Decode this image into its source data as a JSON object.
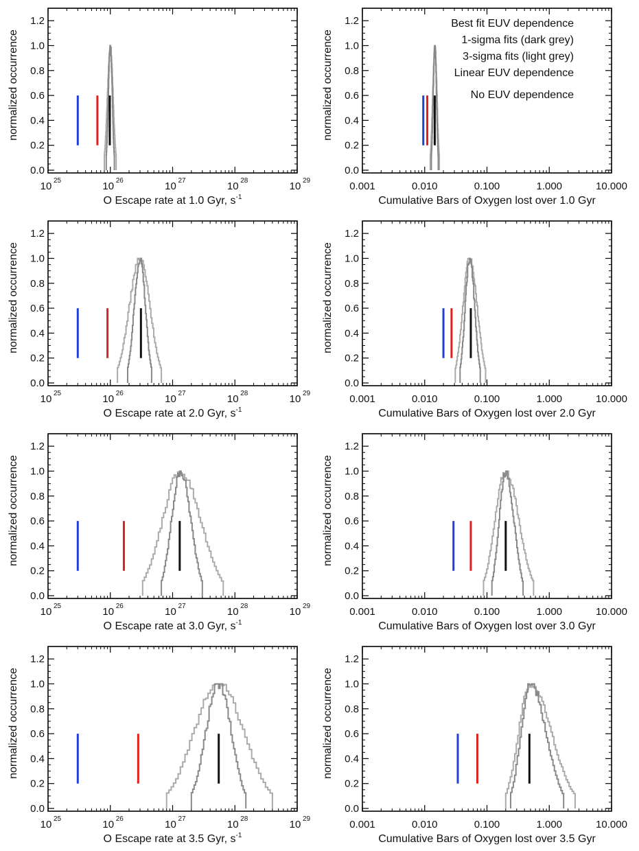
{
  "legend": {
    "placement": "top-right of right panel in row 1",
    "entries": [
      {
        "label": "Best fit EUV dependence",
        "color": "#111111"
      },
      {
        "label": "1-sigma fits (dark grey)",
        "color": "#888888"
      },
      {
        "label": "3-sigma fits (light grey)",
        "color": "#aaaaaa"
      },
      {
        "label": "Linear EUV dependence",
        "color": "#e0201e"
      },
      {
        "label": "No EUV dependence",
        "color": "#1f3fd8"
      }
    ]
  },
  "ylabel": "normalized occurrence",
  "y_ticks": [
    "0.0",
    "0.2",
    "0.4",
    "0.6",
    "0.8",
    "1.0",
    "1.2"
  ],
  "rate_ticks": [
    {
      "base": "10",
      "exp": "25"
    },
    {
      "base": "10",
      "exp": "26"
    },
    {
      "base": "10",
      "exp": "27"
    },
    {
      "base": "10",
      "exp": "28"
    },
    {
      "base": "10",
      "exp": "29"
    }
  ],
  "bars_ticks": [
    "0.001",
    "0.010",
    "0.100",
    "1.000",
    "10.000"
  ],
  "colors": {
    "best": "#111111",
    "linear": "#e0201e",
    "none": "#1f3fd8",
    "sigma1": "#888888",
    "sigma3": "#aaaaaa"
  },
  "chart_data": [
    {
      "type": "line",
      "row": 0,
      "col": 0,
      "xlabel_main": "O Escape rate at 1.0 Gyr, s",
      "xlabel_sup": "-1",
      "xscale": "log",
      "xlim": [
        1e+25,
        1e+29
      ],
      "ylim": [
        0,
        1.3
      ],
      "markers": {
        "none": 3e+25,
        "linear": 6.2e+25,
        "best": 9.8e+25
      },
      "sigma3": {
        "lo": 8e+25,
        "peak": 1e+26,
        "hi": 1.24e+26
      },
      "sigma1": {
        "lo": 8.6e+25,
        "peak": 1e+26,
        "hi": 1.16e+26
      }
    },
    {
      "type": "line",
      "row": 0,
      "col": 1,
      "xlabel_main": "Cumulative Bars of Oxygen lost over 1.0 Gyr",
      "xscale": "log",
      "xlim": [
        0.001,
        10
      ],
      "ylim": [
        0,
        1.3
      ],
      "markers": {
        "none": 0.0095,
        "linear": 0.011,
        "best": 0.0145
      },
      "sigma3": {
        "lo": 0.0123,
        "peak": 0.0146,
        "hi": 0.0172
      },
      "sigma1": {
        "lo": 0.0128,
        "peak": 0.0146,
        "hi": 0.0165
      }
    },
    {
      "type": "line",
      "row": 1,
      "col": 0,
      "xlabel_main": "O Escape rate at 2.0 Gyr, s",
      "xlabel_sup": "-1",
      "xscale": "log",
      "xlim": [
        1e+25,
        1e+29
      ],
      "ylim": [
        0,
        1.3
      ],
      "markers": {
        "none": 3e+25,
        "linear": 9e+25,
        "best": 3.1e+26
      },
      "sigma3": {
        "lo": 1.3e+26,
        "peak": 3e+26,
        "hi": 6.6e+26
      },
      "sigma1": {
        "lo": 1.9e+26,
        "peak": 3e+26,
        "hi": 4.6e+26
      }
    },
    {
      "type": "line",
      "row": 1,
      "col": 1,
      "xlabel_main": "Cumulative Bars of Oxygen lost over 2.0 Gyr",
      "xscale": "log",
      "xlim": [
        0.001,
        10
      ],
      "ylim": [
        0,
        1.3
      ],
      "markers": {
        "none": 0.02,
        "linear": 0.027,
        "best": 0.055
      },
      "sigma3": {
        "lo": 0.031,
        "peak": 0.053,
        "hi": 0.095
      },
      "sigma1": {
        "lo": 0.037,
        "peak": 0.053,
        "hi": 0.078
      }
    },
    {
      "type": "line",
      "row": 2,
      "col": 0,
      "xlabel_main": "O Escape rate at 3.0 Gyr, s",
      "xlabel_sup": "-1",
      "xscale": "log",
      "xlim": [
        1e+25,
        1e+29
      ],
      "ylim": [
        0,
        1.3
      ],
      "markers": {
        "none": 3e+25,
        "linear": 1.65e+26,
        "best": 1.3e+27
      },
      "sigma3": {
        "lo": 3.3e+26,
        "peak": 1.35e+27,
        "hi": 6.5e+27
      },
      "sigma1": {
        "lo": 6.6e+26,
        "peak": 1.35e+27,
        "hi": 3e+27
      }
    },
    {
      "type": "line",
      "row": 2,
      "col": 1,
      "xlabel_main": "Cumulative Bars of Oxygen lost over 3.0 Gyr",
      "xscale": "log",
      "xlim": [
        0.001,
        10
      ],
      "ylim": [
        0,
        1.3
      ],
      "markers": {
        "none": 0.029,
        "linear": 0.055,
        "best": 0.2
      },
      "sigma3": {
        "lo": 0.088,
        "peak": 0.2,
        "hi": 0.56
      },
      "sigma1": {
        "lo": 0.12,
        "peak": 0.2,
        "hi": 0.38
      }
    },
    {
      "type": "line",
      "row": 3,
      "col": 0,
      "xlabel_main": "O Escape rate at 3.5 Gyr, s",
      "xlabel_sup": "-1",
      "xscale": "log",
      "xlim": [
        1e+25,
        1e+29
      ],
      "ylim": [
        0,
        1.3
      ],
      "markers": {
        "none": 3e+25,
        "linear": 2.8e+26,
        "best": 5.5e+27
      },
      "sigma3": {
        "lo": 8e+26,
        "peak": 5.5e+27,
        "hi": 4e+28
      },
      "sigma1": {
        "lo": 2e+27,
        "peak": 5.5e+27,
        "hi": 1.5e+28
      }
    },
    {
      "type": "line",
      "row": 3,
      "col": 1,
      "xlabel_main": "Cumulative Bars of Oxygen lost over 3.5 Gyr",
      "xscale": "log",
      "xlim": [
        0.001,
        10
      ],
      "ylim": [
        0,
        1.3
      ],
      "markers": {
        "none": 0.034,
        "linear": 0.07,
        "best": 0.48
      },
      "sigma3": {
        "lo": 0.2,
        "peak": 0.5,
        "hi": 2.6
      },
      "sigma1": {
        "lo": 0.24,
        "peak": 0.5,
        "hi": 1.7
      }
    }
  ]
}
